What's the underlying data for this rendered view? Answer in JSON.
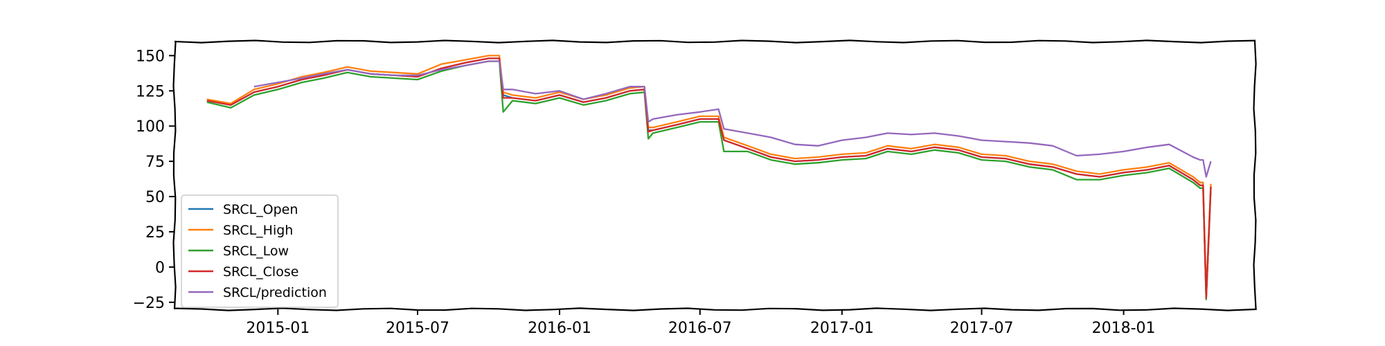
{
  "chart_data": {
    "type": "line",
    "title": "",
    "xlabel": "",
    "ylabel": "",
    "grid": false,
    "legend_position": "lower-left",
    "xlim": [
      "2014-08-20",
      "2018-06-20"
    ],
    "ylim": [
      -30,
      160
    ],
    "x_ticks": [
      {
        "date": "2015-01-01",
        "label": "2015-01"
      },
      {
        "date": "2015-07-01",
        "label": "2015-07"
      },
      {
        "date": "2016-01-01",
        "label": "2016-01"
      },
      {
        "date": "2016-07-01",
        "label": "2016-07"
      },
      {
        "date": "2017-01-01",
        "label": "2017-01"
      },
      {
        "date": "2017-07-01",
        "label": "2017-07"
      },
      {
        "date": "2018-01-01",
        "label": "2018-01"
      }
    ],
    "y_ticks": [
      150,
      125,
      100,
      75,
      50,
      25,
      0,
      -25
    ],
    "x": [
      "2014-10-01",
      "2014-11-01",
      "2014-12-01",
      "2015-01-01",
      "2015-02-01",
      "2015-03-01",
      "2015-04-01",
      "2015-05-01",
      "2015-06-01",
      "2015-07-01",
      "2015-08-01",
      "2015-09-01",
      "2015-10-01",
      "2015-10-15",
      "2015-10-20",
      "2015-11-01",
      "2015-12-01",
      "2016-01-01",
      "2016-02-01",
      "2016-03-01",
      "2016-04-01",
      "2016-04-20",
      "2016-04-25",
      "2016-05-01",
      "2016-06-01",
      "2016-07-01",
      "2016-07-25",
      "2016-08-01",
      "2016-09-01",
      "2016-10-01",
      "2016-11-01",
      "2016-12-01",
      "2017-01-01",
      "2017-02-01",
      "2017-03-01",
      "2017-04-01",
      "2017-05-01",
      "2017-06-01",
      "2017-07-01",
      "2017-08-01",
      "2017-09-01",
      "2017-10-01",
      "2017-11-01",
      "2017-12-01",
      "2018-01-01",
      "2018-02-01",
      "2018-03-01",
      "2018-04-01",
      "2018-04-10",
      "2018-04-14",
      "2018-04-18",
      "2018-04-24"
    ],
    "series": [
      {
        "name": "SRCL_Open",
        "color": "#1f77b4",
        "values": [
          118,
          115,
          124,
          128,
          133,
          136,
          140,
          137,
          136,
          135,
          141,
          145,
          148,
          148,
          122,
          120,
          118,
          122,
          117,
          120,
          125,
          126,
          97,
          97,
          101,
          105,
          105,
          90,
          84,
          78,
          75,
          76,
          78,
          79,
          84,
          82,
          85,
          83,
          78,
          77,
          73,
          71,
          66,
          64,
          67,
          69,
          72,
          62,
          58,
          58,
          -22,
          57
        ]
      },
      {
        "name": "SRCL_High",
        "color": "#ff7f0e",
        "values": [
          119,
          116,
          126,
          130,
          135,
          138,
          142,
          139,
          138,
          137,
          144,
          147,
          150,
          150,
          124,
          122,
          120,
          124,
          119,
          122,
          127,
          128,
          99,
          99,
          103,
          107,
          107,
          92,
          86,
          80,
          77,
          78,
          80,
          81,
          86,
          84,
          87,
          85,
          80,
          79,
          75,
          73,
          68,
          66,
          69,
          71,
          74,
          64,
          60,
          60,
          -18,
          59
        ]
      },
      {
        "name": "SRCL_Low",
        "color": "#2ca02c",
        "values": [
          117,
          113,
          122,
          126,
          131,
          134,
          138,
          135,
          134,
          133,
          139,
          143,
          146,
          146,
          110,
          118,
          116,
          120,
          115,
          118,
          123,
          124,
          91,
          95,
          99,
          103,
          103,
          82,
          82,
          76,
          73,
          74,
          76,
          77,
          82,
          80,
          83,
          81,
          76,
          75,
          71,
          69,
          62,
          62,
          65,
          67,
          70,
          60,
          56,
          56,
          -23,
          56
        ]
      },
      {
        "name": "SRCL_Close",
        "color": "#d62728",
        "values": [
          118,
          115,
          124,
          128,
          133,
          136,
          140,
          137,
          136,
          135,
          141,
          145,
          148,
          148,
          120,
          120,
          118,
          122,
          117,
          120,
          125,
          126,
          96,
          97,
          101,
          105,
          105,
          90,
          84,
          78,
          75,
          76,
          78,
          79,
          84,
          82,
          85,
          83,
          78,
          77,
          73,
          71,
          66,
          64,
          67,
          69,
          72,
          62,
          58,
          58,
          -22,
          57
        ]
      },
      {
        "name": "SRCL/prediction",
        "color": "#9467bd",
        "values": [
          null,
          null,
          128,
          131,
          134,
          137,
          140,
          137,
          136,
          136,
          140,
          143,
          146,
          146,
          126,
          126,
          123,
          125,
          119,
          123,
          128,
          128,
          103,
          105,
          108,
          110,
          112,
          98,
          95,
          92,
          87,
          86,
          90,
          92,
          95,
          94,
          95,
          93,
          90,
          89,
          88,
          86,
          79,
          80,
          82,
          85,
          87,
          78,
          76,
          76,
          64,
          75
        ]
      }
    ]
  }
}
